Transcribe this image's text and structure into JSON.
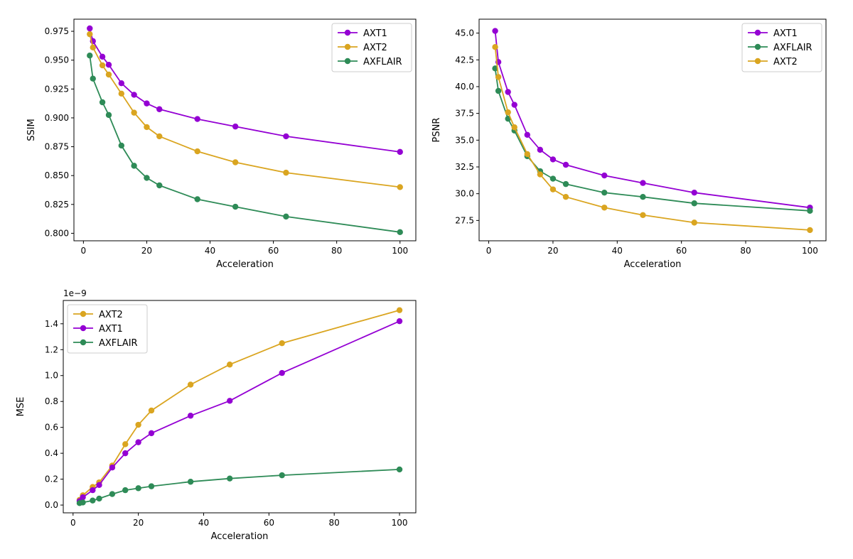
{
  "colors": {
    "AXT1": "#9400d3",
    "AXT2": "#daa520",
    "AXFLAIR": "#2e8b57"
  },
  "chart_data": [
    {
      "type": "line",
      "ylabel": "SSIM",
      "xlabel": "Acceleration",
      "xlim": [
        -3,
        105
      ],
      "ylim": [
        0.7935,
        0.9855
      ],
      "xticks": [
        0,
        20,
        40,
        60,
        80,
        100
      ],
      "xtick_labels": [
        "0",
        "20",
        "40",
        "60",
        "80",
        "100"
      ],
      "yticks": [
        0.8,
        0.825,
        0.85,
        0.875,
        0.9,
        0.925,
        0.95,
        0.975
      ],
      "ytick_labels": [
        "0.800",
        "0.825",
        "0.850",
        "0.875",
        "0.900",
        "0.925",
        "0.950",
        "0.975"
      ],
      "legend_position": "top-right",
      "offset_text": "",
      "series": [
        {
          "name": "AXT1",
          "x": [
            2,
            3,
            6,
            8,
            12,
            16,
            20,
            24,
            36,
            48,
            64,
            100
          ],
          "values": [
            0.9775,
            0.9665,
            0.953,
            0.946,
            0.93,
            0.92,
            0.9125,
            0.9075,
            0.899,
            0.8925,
            0.884,
            0.8705
          ]
        },
        {
          "name": "AXT2",
          "x": [
            2,
            3,
            6,
            8,
            12,
            16,
            20,
            24,
            36,
            48,
            64,
            100
          ],
          "values": [
            0.9725,
            0.961,
            0.9455,
            0.9375,
            0.921,
            0.9045,
            0.892,
            0.884,
            0.871,
            0.8615,
            0.8525,
            0.84
          ]
        },
        {
          "name": "AXFLAIR",
          "x": [
            2,
            3,
            6,
            8,
            12,
            16,
            20,
            24,
            36,
            48,
            64,
            100
          ],
          "values": [
            0.954,
            0.934,
            0.9135,
            0.9025,
            0.876,
            0.8585,
            0.848,
            0.8415,
            0.8295,
            0.823,
            0.8145,
            0.801
          ]
        }
      ]
    },
    {
      "type": "line",
      "ylabel": "PSNR",
      "xlabel": "Acceleration",
      "xlim": [
        -3,
        105
      ],
      "ylim": [
        25.6,
        46.3
      ],
      "xticks": [
        0,
        20,
        40,
        60,
        80,
        100
      ],
      "xtick_labels": [
        "0",
        "20",
        "40",
        "60",
        "80",
        "100"
      ],
      "yticks": [
        27.5,
        30,
        32.5,
        35,
        37.5,
        40,
        42.5,
        45
      ],
      "ytick_labels": [
        "27.5",
        "30.0",
        "32.5",
        "35.0",
        "37.5",
        "40.0",
        "42.5",
        "45.0"
      ],
      "legend_position": "top-right",
      "offset_text": "",
      "series": [
        {
          "name": "AXT1",
          "x": [
            2,
            3,
            6,
            8,
            12,
            16,
            20,
            24,
            36,
            48,
            64,
            100
          ],
          "values": [
            45.2,
            42.3,
            39.5,
            38.3,
            35.5,
            34.1,
            33.2,
            32.7,
            31.7,
            31.0,
            30.1,
            28.7
          ]
        },
        {
          "name": "AXFLAIR",
          "x": [
            2,
            3,
            6,
            8,
            12,
            16,
            20,
            24,
            36,
            48,
            64,
            100
          ],
          "values": [
            41.7,
            39.6,
            37.0,
            35.9,
            33.5,
            32.1,
            31.4,
            30.9,
            30.1,
            29.7,
            29.1,
            28.4
          ]
        },
        {
          "name": "AXT2",
          "x": [
            2,
            3,
            6,
            8,
            12,
            16,
            20,
            24,
            36,
            48,
            64,
            100
          ],
          "values": [
            43.7,
            40.9,
            37.6,
            36.2,
            33.7,
            31.8,
            30.4,
            29.7,
            28.7,
            28.0,
            27.3,
            26.6
          ]
        }
      ]
    },
    {
      "type": "line",
      "ylabel": "MSE",
      "xlabel": "Acceleration",
      "xlim": [
        -3,
        105
      ],
      "ylim": [
        -0.06,
        1.58
      ],
      "xticks": [
        0,
        20,
        40,
        60,
        80,
        100
      ],
      "xtick_labels": [
        "0",
        "20",
        "40",
        "60",
        "80",
        "100"
      ],
      "yticks": [
        0,
        0.2,
        0.4,
        0.6,
        0.8,
        1.0,
        1.2,
        1.4
      ],
      "ytick_labels": [
        "0.0",
        "0.2",
        "0.4",
        "0.6",
        "0.8",
        "1.0",
        "1.2",
        "1.4"
      ],
      "legend_position": "top-left",
      "offset_text": "1e−9",
      "series": [
        {
          "name": "AXT2",
          "x": [
            2,
            3,
            6,
            8,
            12,
            16,
            20,
            24,
            36,
            48,
            64,
            100
          ],
          "values": [
            0.04,
            0.075,
            0.14,
            0.175,
            0.305,
            0.47,
            0.62,
            0.73,
            0.93,
            1.085,
            1.25,
            1.505
          ]
        },
        {
          "name": "AXT1",
          "x": [
            2,
            3,
            6,
            8,
            12,
            16,
            20,
            24,
            36,
            48,
            64,
            100
          ],
          "values": [
            0.03,
            0.06,
            0.115,
            0.155,
            0.29,
            0.4,
            0.485,
            0.555,
            0.69,
            0.805,
            1.02,
            1.42
          ]
        },
        {
          "name": "AXFLAIR",
          "x": [
            2,
            3,
            6,
            8,
            12,
            16,
            20,
            24,
            36,
            48,
            64,
            100
          ],
          "values": [
            0.015,
            0.02,
            0.035,
            0.05,
            0.085,
            0.115,
            0.13,
            0.145,
            0.18,
            0.205,
            0.23,
            0.275
          ]
        }
      ]
    }
  ]
}
